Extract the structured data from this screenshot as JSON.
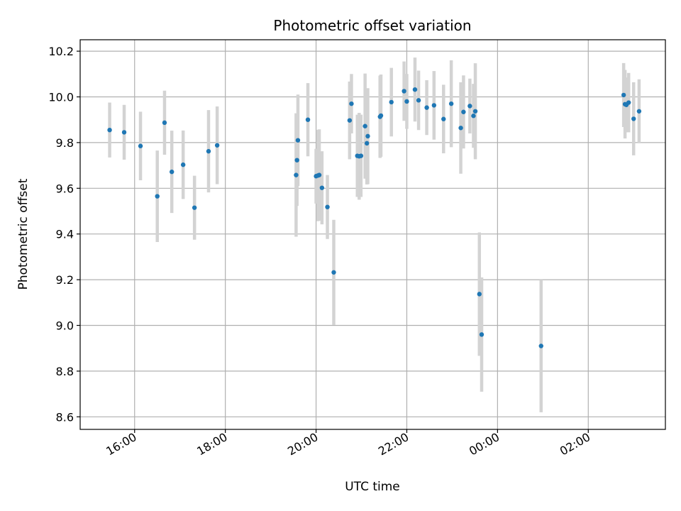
{
  "chart_data": {
    "type": "scatter",
    "title": "Photometric offset variation",
    "xlabel": "UTC time",
    "ylabel": "Photometric offset",
    "x_ticks": [
      {
        "hours": 16,
        "label": "16:00"
      },
      {
        "hours": 18,
        "label": "18:00"
      },
      {
        "hours": 20,
        "label": "20:00"
      },
      {
        "hours": 22,
        "label": "22:00"
      },
      {
        "hours": 24,
        "label": "00:00"
      },
      {
        "hours": 26,
        "label": "02:00"
      }
    ],
    "y_ticks": [
      {
        "value": 8.6,
        "label": "8.6"
      },
      {
        "value": 8.8,
        "label": "8.8"
      },
      {
        "value": 9.0,
        "label": "9.0"
      },
      {
        "value": 9.2,
        "label": "9.2"
      },
      {
        "value": 9.4,
        "label": "9.4"
      },
      {
        "value": 9.6,
        "label": "9.6"
      },
      {
        "value": 9.8,
        "label": "9.8"
      },
      {
        "value": 10.0,
        "label": "10.0"
      },
      {
        "value": 10.2,
        "label": "10.2"
      }
    ],
    "xlim_hours": [
      14.8,
      27.7
    ],
    "ylim": [
      8.545,
      10.25
    ],
    "grid": true,
    "colors": {
      "points": "#1f77b4",
      "errorbars": "#d3d3d3",
      "grid": "#b0b0b0"
    },
    "series": [
      {
        "name": "offset",
        "x_hours": [
          15.45,
          15.77,
          16.13,
          16.5,
          16.66,
          16.82,
          17.07,
          17.32,
          17.63,
          17.82,
          19.56,
          19.58,
          19.6,
          19.82,
          20.0,
          20.04,
          20.07,
          20.13,
          20.25,
          20.39,
          20.74,
          20.78,
          20.91,
          20.95,
          20.99,
          21.08,
          21.12,
          21.14,
          21.41,
          21.43,
          21.66,
          21.94,
          22.0,
          22.18,
          22.26,
          22.44,
          22.6,
          22.81,
          22.98,
          23.19,
          23.25,
          23.39,
          23.47,
          23.51,
          23.6,
          23.65,
          24.96,
          26.78,
          26.81,
          26.84,
          26.89,
          27.0,
          27.12
        ],
        "y": [
          9.855,
          9.845,
          9.785,
          9.565,
          9.887,
          9.672,
          9.703,
          9.515,
          9.762,
          9.788,
          9.658,
          9.723,
          9.81,
          9.9,
          9.653,
          9.656,
          9.658,
          9.602,
          9.518,
          9.232,
          9.897,
          9.97,
          9.742,
          9.74,
          9.742,
          9.872,
          9.797,
          9.828,
          9.913,
          9.918,
          9.977,
          10.025,
          9.98,
          10.032,
          9.985,
          9.953,
          9.963,
          9.903,
          9.97,
          9.864,
          9.934,
          9.96,
          9.917,
          9.937,
          9.137,
          8.96,
          8.91,
          10.008,
          9.968,
          9.965,
          9.975,
          9.904,
          9.937
        ],
        "y_err": [
          0.12,
          0.12,
          0.15,
          0.2,
          0.14,
          0.18,
          0.15,
          0.14,
          0.18,
          0.17,
          0.27,
          0.2,
          0.2,
          0.16,
          0.12,
          0.2,
          0.2,
          0.16,
          0.14,
          0.23,
          0.17,
          0.13,
          0.18,
          0.19,
          0.18,
          0.23,
          0.18,
          0.21,
          0.18,
          0.18,
          0.15,
          0.13,
          0.12,
          0.14,
          0.13,
          0.12,
          0.15,
          0.15,
          0.19,
          0.2,
          0.16,
          0.12,
          0.14,
          0.21,
          0.27,
          0.25,
          0.29,
          0.14,
          0.15,
          0.12,
          0.13,
          0.16,
          0.14
        ]
      }
    ]
  }
}
